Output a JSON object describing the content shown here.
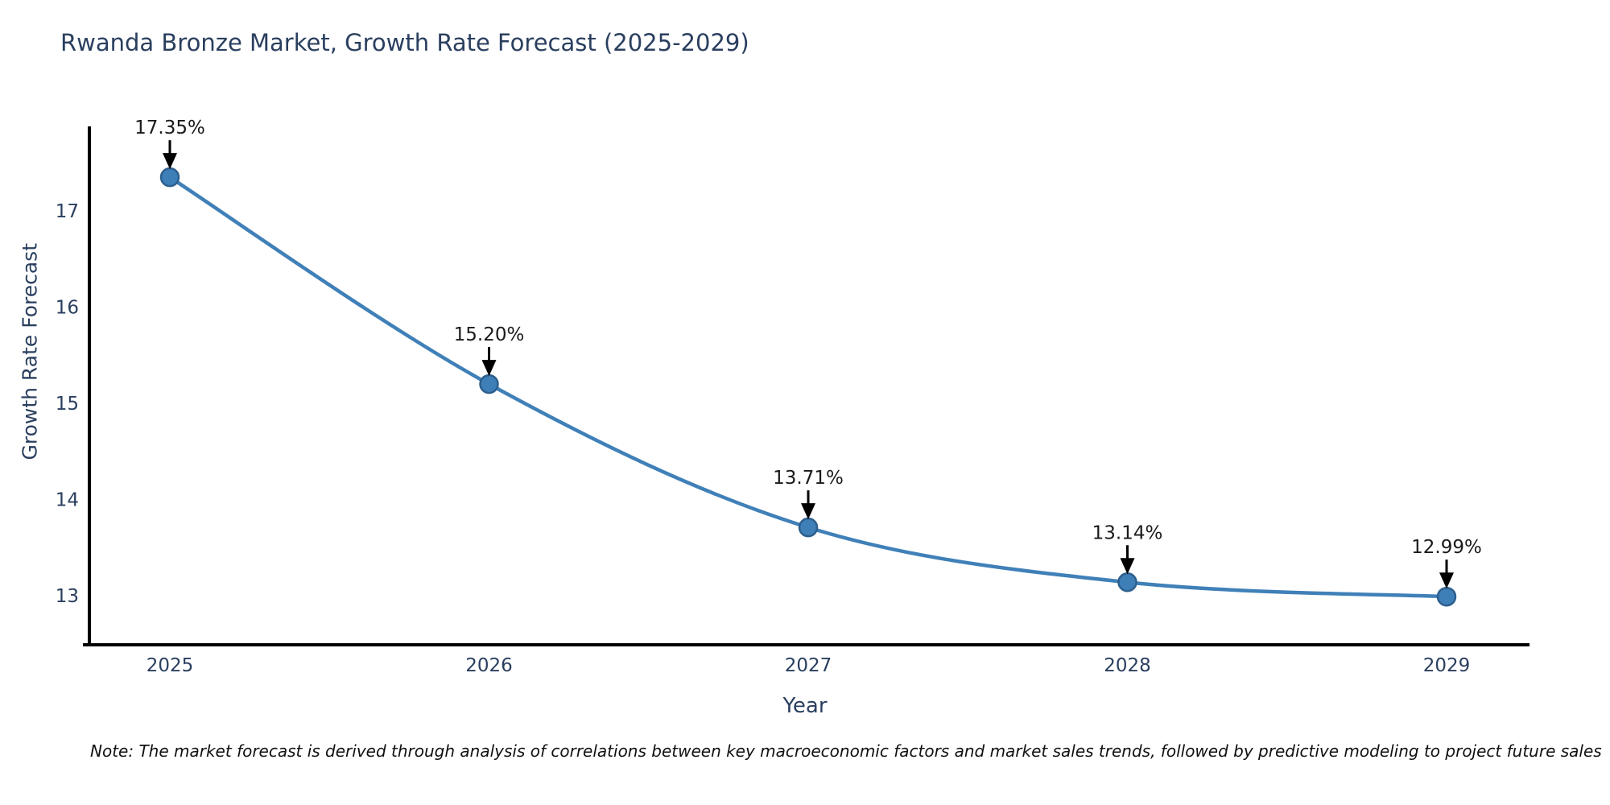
{
  "title": "Rwanda Bronze Market, Growth Rate Forecast (2025-2029)",
  "note": "Note: The market forecast is derived through analysis of correlations between key macroeconomic factors and market sales trends, followed by predictive modeling to project future sales",
  "chart_data": {
    "type": "line",
    "title": "Rwanda Bronze Market, Growth Rate Forecast (2025-2029)",
    "xlabel": "Year",
    "ylabel": "Growth Rate Forecast",
    "x": [
      2025,
      2026,
      2027,
      2028,
      2029
    ],
    "y": [
      17.35,
      15.2,
      13.71,
      13.14,
      12.99
    ],
    "point_labels": [
      "17.35%",
      "15.20%",
      "13.71%",
      "13.14%",
      "12.99%"
    ],
    "yticks": [
      13,
      14,
      15,
      16,
      17
    ],
    "xticks": [
      2025,
      2026,
      2027,
      2028,
      2029
    ],
    "ylim": [
      12.5,
      17.9
    ],
    "grid": false,
    "legend": "none",
    "line_shape": "spline",
    "annotation_style": "value label with black down-arrow to each marker",
    "colors": {
      "line": "#4080b8",
      "marker_fill": "#3e7fb8",
      "marker_edge": "#2d5f8d",
      "axis": "#000000",
      "title_text": "#2a3f5f",
      "axis_text": "#2a3f5f",
      "annotation_text": "#1a1a1a",
      "arrow": "#000000",
      "background": "#ffffff"
    }
  }
}
